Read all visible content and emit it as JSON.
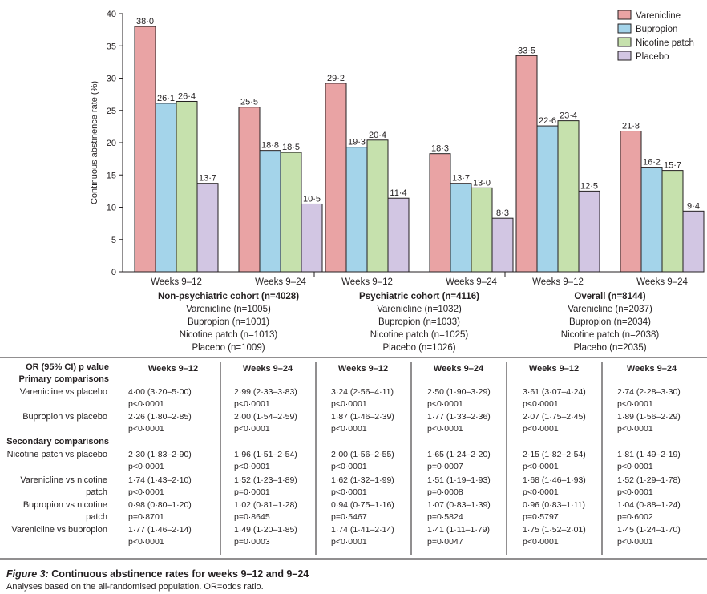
{
  "chart_data": {
    "type": "bar",
    "ylabel": "Continuous abstinence rate (%)",
    "ylim": [
      0,
      40
    ],
    "yticks": [
      0,
      5,
      10,
      15,
      20,
      25,
      30,
      35,
      40
    ],
    "legend_position": "top-right",
    "series": [
      {
        "name": "Varenicline",
        "color": "#e9a3a4"
      },
      {
        "name": "Bupropion",
        "color": "#a4d4ea"
      },
      {
        "name": "Nicotine patch",
        "color": "#c6e1ad"
      },
      {
        "name": "Placebo",
        "color": "#d2c6e3"
      }
    ],
    "groups": [
      {
        "title": "Non-psychiatric cohort (n=4028)",
        "sublabels": [
          "Varenicline (n=1005)",
          "Bupropion (n=1001)",
          "Nicotine patch (n=1013)",
          "Placebo (n=1009)"
        ],
        "periods": [
          {
            "label": "Weeks 9–12",
            "values": [
              38.0,
              26.1,
              26.4,
              13.7
            ],
            "labels": [
              "38·0",
              "26·1",
              "26·4",
              "13·7"
            ]
          },
          {
            "label": "Weeks 9–24",
            "values": [
              25.5,
              18.8,
              18.5,
              10.5
            ],
            "labels": [
              "25·5",
              "18·8",
              "18·5",
              "10·5"
            ]
          }
        ]
      },
      {
        "title": "Psychiatric cohort (n=4116)",
        "sublabels": [
          "Varenicline (n=1032)",
          "Bupropion (n=1033)",
          "Nicotine patch (n=1025)",
          "Placebo (n=1026)"
        ],
        "periods": [
          {
            "label": "Weeks 9–12",
            "values": [
              29.2,
              19.3,
              20.4,
              11.4
            ],
            "labels": [
              "29·2",
              "19·3",
              "20·4",
              "11·4"
            ]
          },
          {
            "label": "Weeks 9–24",
            "values": [
              18.3,
              13.7,
              13.0,
              8.3
            ],
            "labels": [
              "18·3",
              "13·7",
              "13·0",
              "8·3"
            ]
          }
        ]
      },
      {
        "title": "Overall (n=8144)",
        "sublabels": [
          "Varenicline (n=2037)",
          "Bupropion (n=2034)",
          "Nicotine patch (n=2038)",
          "Placebo (n=2035)"
        ],
        "periods": [
          {
            "label": "Weeks 9–12",
            "values": [
              33.5,
              22.6,
              23.4,
              12.5
            ],
            "labels": [
              "33·5",
              "22·6",
              "23·4",
              "12·5"
            ]
          },
          {
            "label": "Weeks 9–24",
            "values": [
              21.8,
              16.2,
              15.7,
              9.4
            ],
            "labels": [
              "21·8",
              "16·2",
              "15·7",
              "9·4"
            ]
          }
        ]
      }
    ]
  },
  "table": {
    "header_label": "OR (95% CI) p value",
    "columns": [
      "Weeks 9–12",
      "Weeks 9–24",
      "Weeks 9–12",
      "Weeks 9–24",
      "Weeks 9–12",
      "Weeks 9–24"
    ],
    "primary_heading": "Primary comparisons",
    "secondary_heading": "Secondary comparisons",
    "rows": [
      {
        "label": [
          "Varenicline vs placebo"
        ],
        "cells": [
          [
            "4·00 (3·20–5·00)",
            "p<0·0001"
          ],
          [
            "2·99 (2·33–3·83)",
            "p<0·0001"
          ],
          [
            "3·24 (2·56–4·11)",
            "p<0·0001"
          ],
          [
            "2·50 (1·90–3·29)",
            "p<0·0001"
          ],
          [
            "3·61 (3·07–4·24)",
            "p<0·0001"
          ],
          [
            "2·74 (2·28–3·30)",
            "p<0·0001"
          ]
        ]
      },
      {
        "label": [
          "Bupropion vs placebo"
        ],
        "cells": [
          [
            "2·26 (1·80–2·85)",
            "p<0·0001"
          ],
          [
            "2·00 (1·54–2·59)",
            "p<0·0001"
          ],
          [
            "1·87 (1·46–2·39)",
            "p<0·0001"
          ],
          [
            "1·77 (1·33–2·36)",
            "p<0·0001"
          ],
          [
            "2·07 (1·75–2·45)",
            "p<0·0001"
          ],
          [
            "1·89 (1·56–2·29)",
            "p<0·0001"
          ]
        ]
      },
      {
        "label": [
          "Nicotine patch vs placebo"
        ],
        "cells": [
          [
            "2·30 (1·83–2·90)",
            "p<0·0001"
          ],
          [
            "1·96 (1·51–2·54)",
            "p<0·0001"
          ],
          [
            "2·00 (1·56–2·55)",
            "p<0·0001"
          ],
          [
            "1·65 (1·24–2·20)",
            "p=0·0007"
          ],
          [
            "2·15 (1·82–2·54)",
            "p<0·0001"
          ],
          [
            "1·81 (1·49–2·19)",
            "p<0·0001"
          ]
        ]
      },
      {
        "label": [
          "Varenicline vs nicotine",
          "patch"
        ],
        "cells": [
          [
            "1·74 (1·43–2·10)",
            "p<0·0001"
          ],
          [
            "1·52 (1·23–1·89)",
            "p=0·0001"
          ],
          [
            "1·62 (1·32–1·99)",
            "p<0·0001"
          ],
          [
            "1·51 (1·19–1·93)",
            "p=0·0008"
          ],
          [
            "1·68 (1·46–1·93)",
            "p<0·0001"
          ],
          [
            "1·52 (1·29–1·78)",
            "p<0·0001"
          ]
        ]
      },
      {
        "label": [
          "Bupropion vs nicotine",
          "patch"
        ],
        "cells": [
          [
            "0·98 (0·80–1·20)",
            "p=0·8701"
          ],
          [
            "1·02 (0·81–1·28)",
            "p=0·8645"
          ],
          [
            "0·94 (0·75–1·16)",
            "p=0·5467"
          ],
          [
            "1·07 (0·83–1·39)",
            "p=0·5824"
          ],
          [
            "0·96 (0·83–1·11)",
            "p=0·5797"
          ],
          [
            "1·04 (0·88–1·24)",
            "p=0·6002"
          ]
        ]
      },
      {
        "label": [
          "Varenicline vs bupropion"
        ],
        "cells": [
          [
            "1·77 (1·46–2·14)",
            "p<0·0001"
          ],
          [
            "1·49 (1·20–1·85)",
            "p=0·0003"
          ],
          [
            "1·74 (1·41–2·14)",
            "p<0·0001"
          ],
          [
            "1·41 (1·11–1·79)",
            "p=0·0047"
          ],
          [
            "1·75 (1·52–2·01)",
            "p<0·0001"
          ],
          [
            "1·45 (1·24–1·70)",
            "p<0·0001"
          ]
        ]
      }
    ]
  },
  "caption": {
    "figure_label": "Figure 3:",
    "title": "Continuous abstinence rates for weeks 9–12 and 9–24",
    "subtitle": "Analyses based on the all-randomised population. OR=odds ratio."
  }
}
